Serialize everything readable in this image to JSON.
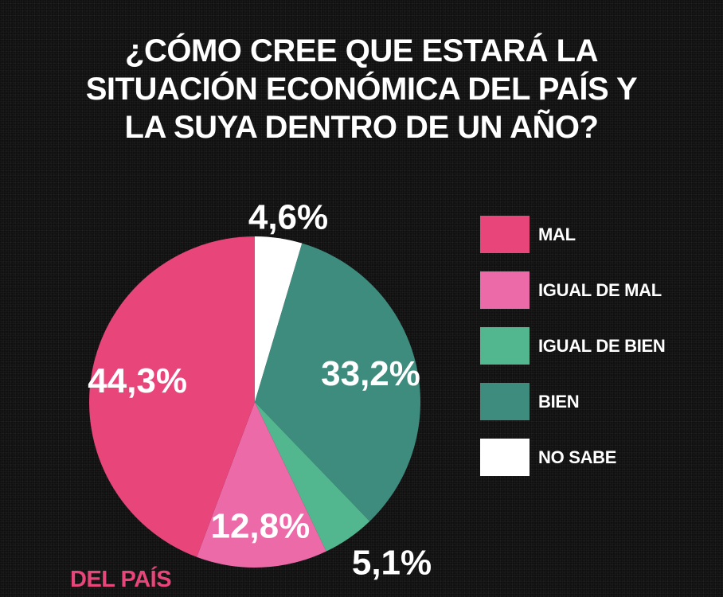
{
  "title_lines": [
    "¿CÓMO CREE QUE ESTARÁ LA",
    "SITUACIÓN ECONÓMICA DEL PAÍS Y",
    "LA SUYA DENTRO DE UN AÑO?"
  ],
  "subtitle": "DEL PAÍS",
  "chart_data": {
    "type": "pie",
    "title": "¿CÓMO CREE QUE ESTARÁ LA SITUACIÓN ECONÓMICA DEL PAÍS Y LA SUYA DENTRO DE UN AÑO?",
    "subtitle": "DEL PAÍS",
    "legend_position": "right",
    "slices": [
      {
        "label": "NO SABE",
        "value": 4.6,
        "value_label": "4,6%",
        "color": "#ffffff",
        "label_color": "#ffffff",
        "label_placement": "outside"
      },
      {
        "label": "BIEN",
        "value": 33.2,
        "value_label": "33,2%",
        "color": "#3e8c7d",
        "label_color": "#ffffff",
        "label_placement": "inside"
      },
      {
        "label": "IGUAL DE BIEN",
        "value": 5.1,
        "value_label": "5,1%",
        "color": "#52b78e",
        "label_color": "#ffffff",
        "label_placement": "outside"
      },
      {
        "label": "IGUAL DE MAL",
        "value": 12.8,
        "value_label": "12,8%",
        "color": "#eb6aa7",
        "label_color": "#ffffff",
        "label_placement": "inside"
      },
      {
        "label": "MAL",
        "value": 44.3,
        "value_label": "44,3%",
        "color": "#e8457a",
        "label_color": "#ffffff",
        "label_placement": "inside"
      }
    ],
    "legend": [
      {
        "label": "MAL",
        "color": "#e8457a"
      },
      {
        "label": "IGUAL DE MAL",
        "color": "#eb6aa7"
      },
      {
        "label": "IGUAL DE BIEN",
        "color": "#52b78e"
      },
      {
        "label": "BIEN",
        "color": "#3e8c7d"
      },
      {
        "label": "NO SABE",
        "color": "#ffffff"
      }
    ]
  }
}
